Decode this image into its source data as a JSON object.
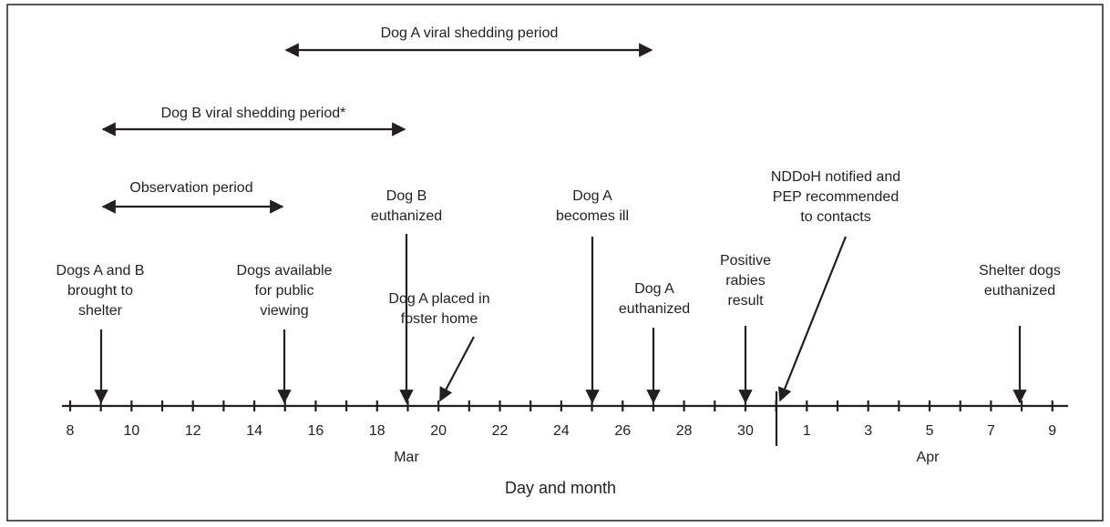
{
  "periods": [
    {
      "label": "Dog A viral shedding period"
    },
    {
      "label": "Dog B viral shedding period*"
    },
    {
      "label": "Observation period"
    }
  ],
  "events": [
    {
      "label": [
        "Dogs A and B",
        "brought to",
        "shelter"
      ]
    },
    {
      "label": [
        "Dogs available",
        "for public",
        "viewing"
      ]
    },
    {
      "label": [
        "Dog B",
        "euthanized"
      ]
    },
    {
      "label": [
        "Dog A placed in",
        "foster home"
      ]
    },
    {
      "label": [
        "Dog A",
        "becomes ill"
      ]
    },
    {
      "label": [
        "Dog A",
        "euthanized"
      ]
    },
    {
      "label": [
        "Positive",
        "rabies",
        "result"
      ]
    },
    {
      "label": [
        "NDDoH notified and",
        "PEP recommended",
        "to contacts"
      ]
    },
    {
      "label": [
        "Shelter dogs",
        "euthanized"
      ]
    }
  ],
  "axis": {
    "march_labels": [
      "8",
      "10",
      "12",
      "14",
      "16",
      "18",
      "20",
      "22",
      "24",
      "26",
      "28",
      "30"
    ],
    "april_labels": [
      "1",
      "3",
      "5",
      "7",
      "9"
    ],
    "months": [
      "Mar",
      "Apr"
    ],
    "title": "Day and month"
  }
}
